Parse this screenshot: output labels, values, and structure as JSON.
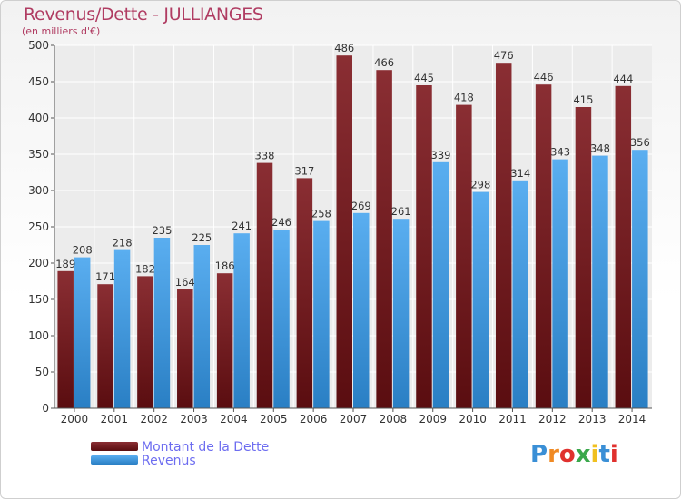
{
  "title": "Revenus/Dette - JULLIANGES",
  "subtitle": "(en milliers d'€)",
  "chart_data": {
    "type": "bar",
    "categories": [
      "2000",
      "2001",
      "2002",
      "2003",
      "2004",
      "2005",
      "2006",
      "2007",
      "2008",
      "2009",
      "2010",
      "2011",
      "2012",
      "2013",
      "2014"
    ],
    "series": [
      {
        "name": "Montant de la Dette",
        "color": "#7a1e23",
        "values": [
          189,
          171,
          182,
          164,
          186,
          338,
          317,
          486,
          466,
          445,
          418,
          476,
          446,
          415,
          444
        ]
      },
      {
        "name": "Revenus",
        "color": "#3c9be0",
        "values": [
          208,
          218,
          235,
          225,
          241,
          246,
          258,
          269,
          261,
          339,
          298,
          314,
          343,
          348,
          356
        ]
      }
    ],
    "ylim": [
      0,
      500
    ],
    "yticks": [
      0,
      50,
      100,
      150,
      200,
      250,
      300,
      350,
      400,
      450,
      500
    ],
    "grid": true
  },
  "legend": {
    "items": [
      {
        "label": "Montant de la Dette",
        "color": "#7a1e23"
      },
      {
        "label": "Revenus",
        "color": "#3c9be0"
      }
    ]
  },
  "logo": {
    "text": "Proxiti",
    "letters": [
      "P",
      "r",
      "o",
      "x",
      "i",
      "t",
      "i"
    ],
    "colors": [
      "#3a8fd6",
      "#f08a24",
      "#e0312e",
      "#3aa84b",
      "#f0c020",
      "#3a8fd6",
      "#e0312e"
    ]
  }
}
